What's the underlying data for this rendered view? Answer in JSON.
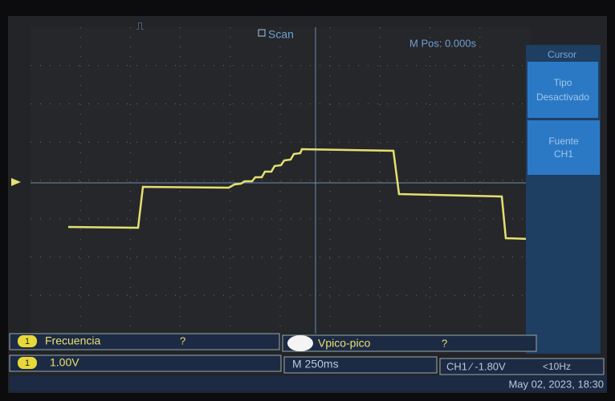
{
  "header": {
    "mode": "Scan",
    "position": "M Pos: 0.000s"
  },
  "menu": {
    "title": "Cursor",
    "buttons": [
      {
        "label": "Tipo",
        "value": "Desactivado"
      },
      {
        "label": "Fuente",
        "value": "CH1"
      }
    ]
  },
  "measurements": [
    {
      "channel": "1",
      "name": "Frecuencia",
      "value": "?"
    },
    {
      "name": "Vpico-pico",
      "value": "?"
    }
  ],
  "status": {
    "channel": "1",
    "scale": "1.00V",
    "timebase": "M 250ms",
    "trigger": "CH1 ∕ -1.80V",
    "frequency": "<10Hz",
    "datetime": "May 02, 2023, 18:30"
  }
}
